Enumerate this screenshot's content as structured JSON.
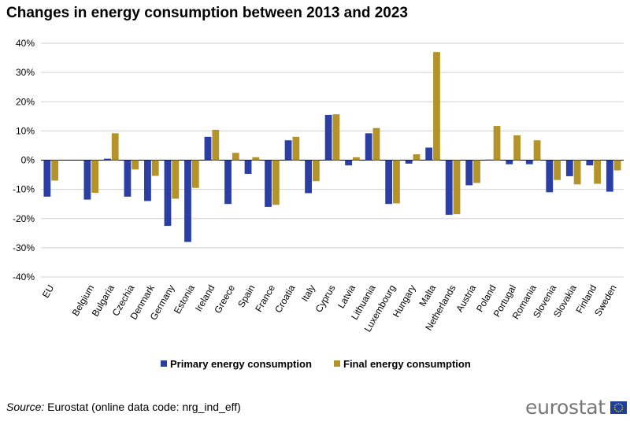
{
  "source": {
    "label": "Source:",
    "text": "Eurostat (online data code: nrg_ind_eff)"
  },
  "logo": {
    "text": "eurostat"
  },
  "colors": {
    "primary": "#2a3ea3",
    "final": "#b5932b",
    "grid": "#d0d0d0",
    "flag_bg": "#1f3f99",
    "flag_star": "#f5d300"
  },
  "chart_data": {
    "type": "bar",
    "title": "Changes in energy consumption between 2013 and 2023",
    "xlabel": "",
    "ylabel": "",
    "ylim": [
      -40,
      40
    ],
    "ytick_values": [
      40,
      30,
      20,
      10,
      0,
      -10,
      -20,
      -30,
      -40
    ],
    "ytick_labels": [
      "40%",
      "30%",
      "20%",
      "10%",
      "0%",
      "-10%",
      "-20%",
      "-30%",
      "-40%"
    ],
    "grid": true,
    "legend_position": "bottom-center",
    "gap_after_first_category": true,
    "categories": [
      "EU",
      "Belgium",
      "Bulgaria",
      "Czechia",
      "Denmark",
      "Germany",
      "Estonia",
      "Ireland",
      "Greece",
      "Spain",
      "France",
      "Croatia",
      "Italy",
      "Cyprus",
      "Latvia",
      "Lithuania",
      "Luxembourg",
      "Hungary",
      "Malta",
      "Netherlands",
      "Austria",
      "Poland",
      "Portugal",
      "Romania",
      "Slovenia",
      "Slovakia",
      "Finland",
      "Sweden"
    ],
    "series": [
      {
        "name": "Primary energy consumption",
        "values": [
          -12.5,
          -13.5,
          0.5,
          -12.5,
          -14,
          -22.5,
          -28,
          8,
          -15,
          -4.7,
          -16,
          6.8,
          -11.3,
          15.5,
          -1.8,
          9.2,
          -15,
          -1.2,
          4.3,
          -18.7,
          -8.6,
          0.2,
          -1.4,
          -1.4,
          -11,
          -5.5,
          -1.8,
          -10.8
        ]
      },
      {
        "name": "Final energy consumption",
        "values": [
          -7,
          -11.2,
          9.2,
          -3.2,
          -5.4,
          -13.2,
          -9.5,
          10.4,
          2.5,
          1,
          -15.3,
          8,
          -7.2,
          15.7,
          1,
          11,
          -14.8,
          2,
          37,
          -18.5,
          -7.8,
          11.7,
          8.5,
          6.8,
          -6.8,
          -8.3,
          -8.1,
          -3.5
        ]
      }
    ]
  }
}
